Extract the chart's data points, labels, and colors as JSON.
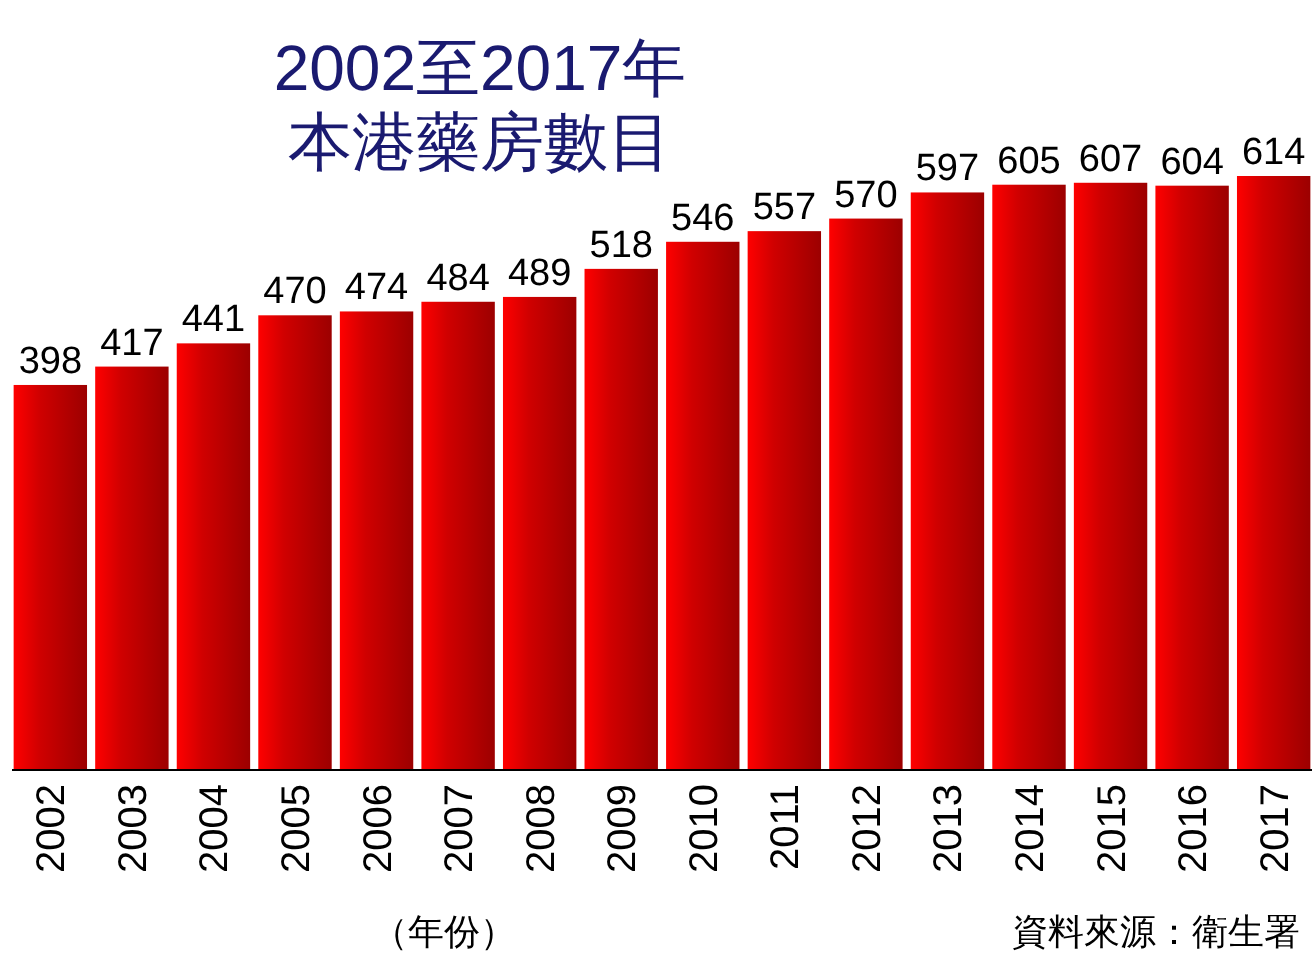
{
  "chart_data": {
    "type": "bar",
    "title": "2002至2017年",
    "subtitle": "本港藥房數目",
    "categories": [
      "2002",
      "2003",
      "2004",
      "2005",
      "2006",
      "2007",
      "2008",
      "2009",
      "2010",
      "2011",
      "2012",
      "2013",
      "2014",
      "2015",
      "2016",
      "2017"
    ],
    "values": [
      398,
      417,
      441,
      470,
      474,
      484,
      489,
      518,
      546,
      557,
      570,
      597,
      605,
      607,
      604,
      614
    ],
    "color": "#d00000",
    "data_labels": true,
    "annotations": [
      "（年份）",
      "資料來源：衛生署"
    ]
  }
}
